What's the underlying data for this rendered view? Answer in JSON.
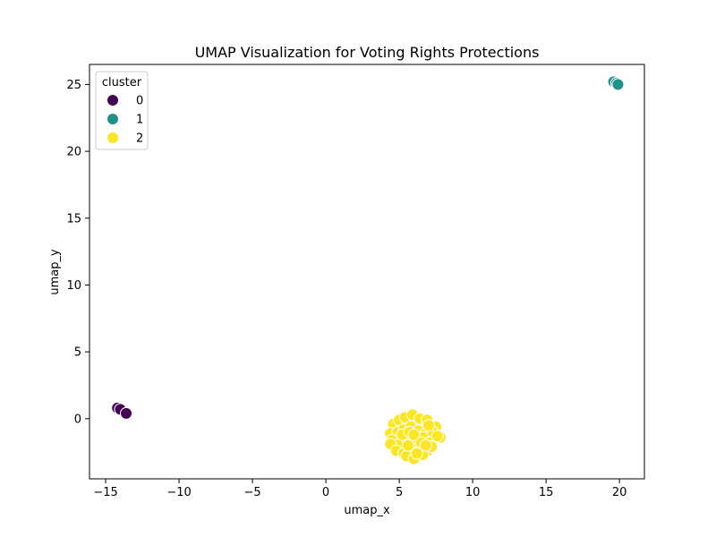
{
  "chart_data": {
    "type": "scatter",
    "title": "UMAP Visualization for Voting Rights Protections",
    "xlabel": "umap_x",
    "ylabel": "umap_y",
    "xlim": [
      -16.1,
      21.7
    ],
    "ylim": [
      -4.5,
      26.5
    ],
    "xticks": [
      -15,
      -10,
      -5,
      0,
      5,
      10,
      15,
      20
    ],
    "yticks": [
      0,
      5,
      10,
      15,
      20,
      25
    ],
    "grid": false,
    "legend": {
      "title": "cluster",
      "placement": "top-left"
    },
    "series": [
      {
        "name": "0",
        "color": "#440154",
        "points": [
          [
            -14.2,
            0.8
          ],
          [
            -14.0,
            0.7
          ],
          [
            -13.6,
            0.4
          ]
        ]
      },
      {
        "name": "1",
        "color": "#21918c",
        "points": [
          [
            19.6,
            25.2
          ],
          [
            19.8,
            25.1
          ],
          [
            19.9,
            25.0
          ]
        ]
      },
      {
        "name": "2",
        "color": "#fde725",
        "points": [
          [
            4.6,
            -0.4
          ],
          [
            5.0,
            -0.1
          ],
          [
            5.4,
            0.1
          ],
          [
            5.9,
            0.3
          ],
          [
            6.4,
            0.0
          ],
          [
            6.9,
            -0.1
          ],
          [
            7.5,
            -0.6
          ],
          [
            4.4,
            -1.1
          ],
          [
            4.9,
            -1.0
          ],
          [
            5.3,
            -0.8
          ],
          [
            5.8,
            -0.6
          ],
          [
            6.3,
            -0.9
          ],
          [
            6.8,
            -1.1
          ],
          [
            7.3,
            -1.0
          ],
          [
            7.8,
            -1.4
          ],
          [
            4.5,
            -1.6
          ],
          [
            5.0,
            -1.9
          ],
          [
            5.5,
            -1.5
          ],
          [
            6.1,
            -1.6
          ],
          [
            6.6,
            -1.4
          ],
          [
            7.1,
            -1.8
          ],
          [
            7.6,
            -1.3
          ],
          [
            4.4,
            -1.9
          ],
          [
            4.8,
            -2.4
          ],
          [
            5.3,
            -2.6
          ],
          [
            5.8,
            -2.2
          ],
          [
            6.3,
            -2.5
          ],
          [
            6.9,
            -2.4
          ],
          [
            7.2,
            -2.1
          ],
          [
            5.5,
            -2.8
          ],
          [
            6.0,
            -3.0
          ],
          [
            6.6,
            -2.7
          ],
          [
            6.2,
            -2.6
          ],
          [
            5.2,
            -1.2
          ],
          [
            5.7,
            -1.0
          ],
          [
            6.0,
            -1.2
          ],
          [
            6.5,
            -1.8
          ],
          [
            7.0,
            -0.5
          ],
          [
            5.6,
            -2.0
          ],
          [
            6.8,
            -2.0
          ]
        ]
      }
    ]
  }
}
